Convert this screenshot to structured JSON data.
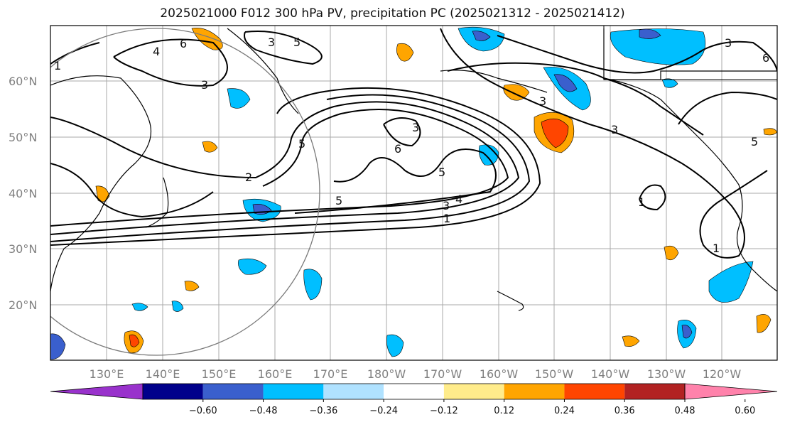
{
  "title": "2025021000 F012 300 hPa PV, precipitation PC (2025021312 - 2025021412)",
  "map": {
    "lat_labels": [
      {
        "lat": 60,
        "text": "60°N"
      },
      {
        "lat": 50,
        "text": "50°N"
      },
      {
        "lat": 40,
        "text": "40°N"
      },
      {
        "lat": 30,
        "text": "30°N"
      },
      {
        "lat": 20,
        "text": "20°N"
      }
    ],
    "lon_labels": [
      "130°E",
      "140°E",
      "150°E",
      "160°E",
      "170°E",
      "180°W",
      "170°W",
      "160°W",
      "150°W",
      "140°W",
      "130°W",
      "120°W"
    ],
    "pv_contour_labels": [
      "4",
      "6",
      "3",
      "5",
      "5",
      "6",
      "3",
      "2",
      "3",
      "5",
      "6",
      "5",
      "5",
      "3",
      "4",
      "3",
      "1",
      "3",
      "3",
      "1",
      "1",
      "1"
    ]
  },
  "colorbar": {
    "ticks": [
      "−0.60",
      "−0.48",
      "−0.36",
      "−0.24",
      "−0.12",
      "0.12",
      "0.24",
      "0.36",
      "0.48",
      "0.60"
    ],
    "colors": [
      "#9932cc",
      "#00008b",
      "#3a5fcd",
      "#00bfff",
      "#b0e2ff",
      "#ffffff",
      "#ffec8b",
      "#ffa500",
      "#ff4500",
      "#b22222",
      "#ff82ab"
    ]
  }
}
